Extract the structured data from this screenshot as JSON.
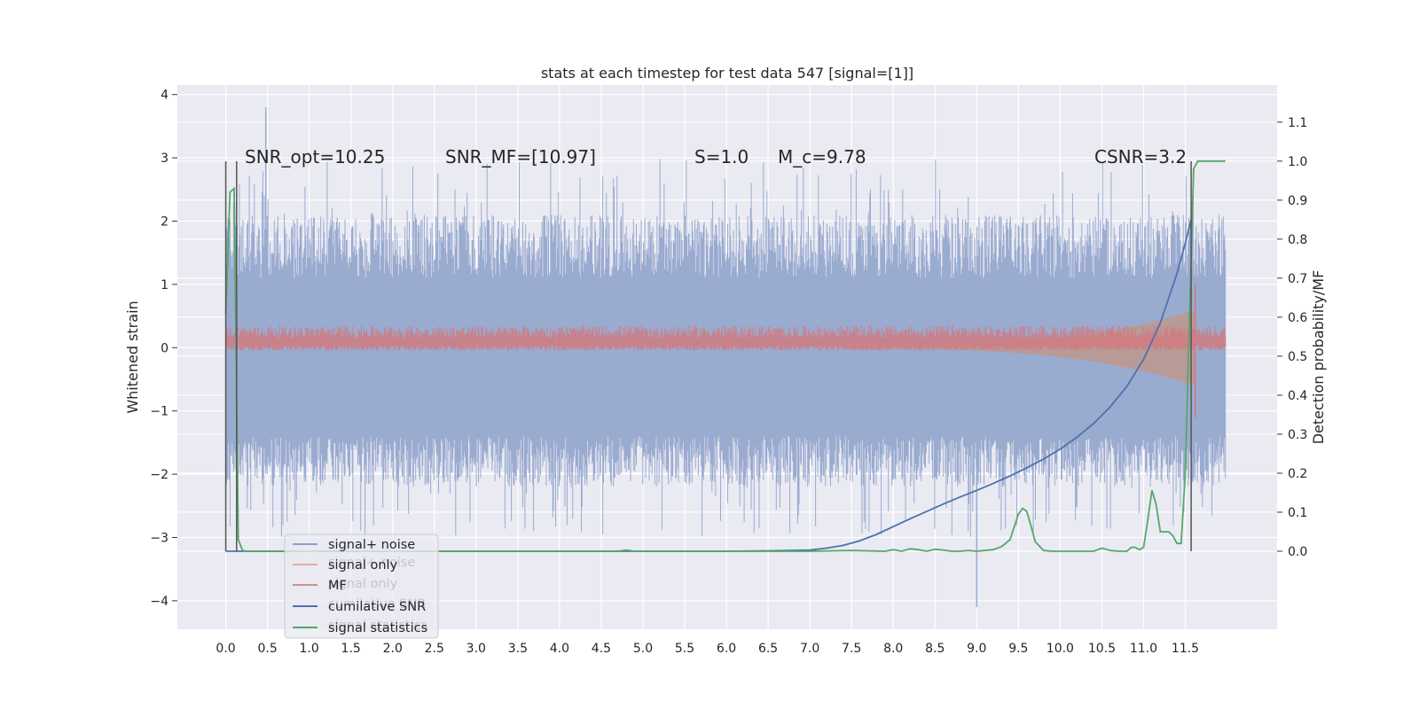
{
  "chart_data": {
    "type": "line",
    "title": "stats at each timestep for test data 547 [signal=[1]]",
    "ylabel": "Whitened strain",
    "ylabel_right": "Detection probability/MF",
    "xlim": [
      -0.58,
      12.6
    ],
    "ylim": [
      -4.45,
      4.15
    ],
    "ylim_right": [
      -0.2,
      1.195
    ],
    "x_ticks": [
      0.0,
      0.5,
      1.0,
      1.5,
      2.0,
      2.5,
      3.0,
      3.5,
      4.0,
      4.5,
      5.0,
      5.5,
      6.0,
      6.5,
      7.0,
      7.5,
      8.0,
      8.5,
      9.0,
      9.5,
      10.0,
      10.5,
      11.0,
      11.5
    ],
    "x_tick_labels": [
      "0.0",
      "0.5",
      "1.0",
      "1.5",
      "2.0",
      "2.5",
      "3.0",
      "3.5",
      "4.0",
      "4.5",
      "5.0",
      "5.5",
      "6.0",
      "6.5",
      "7.0",
      "7.5",
      "8.0",
      "8.5",
      "9.0",
      "9.5",
      "10.0",
      "10.5",
      "11.0",
      "11.5"
    ],
    "y_ticks": [
      -4,
      -3,
      -2,
      -1,
      0,
      1,
      2,
      3,
      4
    ],
    "y_tick_labels": [
      "−4",
      "−3",
      "−2",
      "−1",
      "0",
      "1",
      "2",
      "3",
      "4"
    ],
    "y_ticks_right": [
      0.0,
      0.1,
      0.2,
      0.3,
      0.4,
      0.5,
      0.6,
      0.7,
      0.8,
      0.9,
      1.0,
      1.1
    ],
    "y_tick_labels_right": [
      "0.0",
      "0.1",
      "0.2",
      "0.3",
      "0.4",
      "0.5",
      "0.6",
      "0.7",
      "0.8",
      "0.9",
      "1.0",
      "1.1"
    ],
    "grid": true,
    "legend_position": "lower-left",
    "legend": [
      {
        "label": "signal+ noise",
        "color": "#8da0cb"
      },
      {
        "label": "signal only",
        "color": "#dd8452"
      },
      {
        "label": "MF",
        "color": "#c44e52"
      },
      {
        "label": "cumilative SNR",
        "color": "#4c72b0"
      },
      {
        "label": "signal statistics",
        "color": "#55a868"
      }
    ],
    "legend_ghost_texts": [
      {
        "text": "signal+ noise"
      },
      {
        "text": "signal only"
      },
      {
        "text": "cumilative SNR"
      },
      {
        "text": "signal statistics"
      }
    ],
    "annotations": [
      {
        "text": "SNR_opt=10.25"
      },
      {
        "text": "SNR_MF=[10.97]"
      },
      {
        "text": "S=1.0"
      },
      {
        "text": "M_c=9.78"
      },
      {
        "text": "CSNR=3.2"
      }
    ],
    "vertical_markers_x": [
      0.0,
      0.13,
      11.57
    ],
    "series": [
      {
        "name": "signal+ noise",
        "axis": "left",
        "kind": "noise",
        "x_range": [
          0.0,
          11.98
        ],
        "band": [
          -1.4,
          1.1
        ],
        "peaks_max": 3.8,
        "peaks_min": -4.1
      },
      {
        "name": "signal only",
        "axis": "left",
        "kind": "chirp",
        "x_range": [
          7.5,
          11.62
        ],
        "max_amplitude": 0.8
      },
      {
        "name": "MF",
        "axis": "left",
        "kind": "noise",
        "x_range": [
          0.0,
          11.98
        ],
        "band": [
          0.0,
          0.3
        ],
        "peak_max": 1.0,
        "peak_min": -1.1
      },
      {
        "name": "cumilative SNR",
        "axis": "right",
        "x": [
          0.0,
          0.5,
          1.0,
          2.0,
          3.0,
          4.0,
          5.0,
          6.0,
          6.5,
          7.0,
          7.2,
          7.4,
          7.6,
          7.8,
          8.0,
          8.2,
          8.4,
          8.6,
          8.8,
          9.0,
          9.2,
          9.4,
          9.6,
          9.8,
          10.0,
          10.2,
          10.4,
          10.6,
          10.8,
          11.0,
          11.2,
          11.4,
          11.5,
          11.57
        ],
        "y": [
          0.0,
          0.0,
          0.0,
          0.0,
          0.0,
          0.0,
          0.0,
          0.0,
          0.001,
          0.003,
          0.008,
          0.015,
          0.027,
          0.043,
          0.063,
          0.083,
          0.102,
          0.121,
          0.139,
          0.156,
          0.174,
          0.193,
          0.214,
          0.236,
          0.262,
          0.292,
          0.327,
          0.37,
          0.423,
          0.492,
          0.585,
          0.712,
          0.79,
          0.85
        ]
      },
      {
        "name": "signal statistics",
        "axis": "right",
        "x": [
          0.0,
          0.05,
          0.1,
          0.15,
          0.2,
          0.25,
          0.3,
          0.4,
          1.0,
          2.0,
          3.0,
          4.0,
          4.7,
          4.8,
          4.9,
          5.0,
          6.0,
          7.0,
          7.5,
          7.9,
          8.0,
          8.1,
          8.2,
          8.3,
          8.4,
          8.5,
          8.6,
          8.7,
          8.8,
          8.9,
          9.0,
          9.2,
          9.3,
          9.4,
          9.5,
          9.55,
          9.6,
          9.65,
          9.7,
          9.8,
          9.9,
          10.0,
          10.2,
          10.4,
          10.5,
          10.6,
          10.7,
          10.8,
          10.85,
          10.9,
          10.95,
          11.0,
          11.05,
          11.1,
          11.15,
          11.2,
          11.3,
          11.35,
          11.4,
          11.45,
          11.5,
          11.55,
          11.6,
          11.65,
          11.7,
          11.75,
          11.8,
          11.9,
          11.98
        ],
        "y": [
          0.61,
          0.92,
          0.93,
          0.03,
          0.002,
          0.0,
          0.0,
          0.0,
          0.0,
          0.0,
          0.0,
          0.0,
          0.0,
          0.003,
          0.0,
          0.0,
          0.0,
          0.0,
          0.002,
          0.0,
          0.004,
          0.0,
          0.006,
          0.004,
          0.0,
          0.005,
          0.003,
          0.0,
          0.0,
          0.002,
          0.0,
          0.004,
          0.012,
          0.03,
          0.095,
          0.11,
          0.102,
          0.065,
          0.025,
          0.002,
          0.0,
          0.0,
          0.0,
          0.0,
          0.008,
          0.002,
          0.0,
          0.0,
          0.01,
          0.01,
          0.004,
          0.01,
          0.08,
          0.156,
          0.12,
          0.05,
          0.05,
          0.04,
          0.02,
          0.02,
          0.2,
          0.6,
          0.98,
          1.0,
          1.0,
          1.0,
          1.0,
          1.0,
          1.0
        ]
      }
    ]
  }
}
